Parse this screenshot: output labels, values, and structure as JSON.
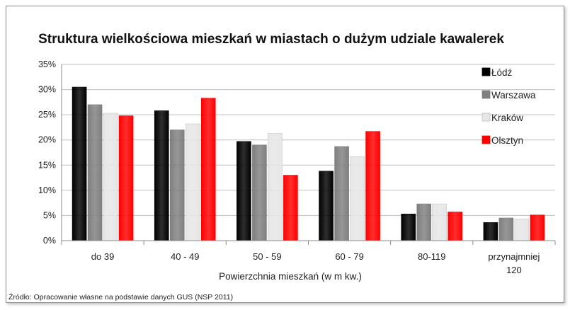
{
  "chart_data": {
    "type": "bar",
    "title": "Struktura wielkościowa mieszkań w miastach o dużym udziale kawalerek",
    "xlabel": "Powierzchnia mieszkań (w m kw.)",
    "ylabel": "",
    "ylim": [
      0,
      35
    ],
    "yticks": [
      "0%",
      "5%",
      "10%",
      "15%",
      "20%",
      "25%",
      "30%",
      "35%"
    ],
    "ytick_values": [
      0,
      5,
      10,
      15,
      20,
      25,
      30,
      35
    ],
    "grid": true,
    "legend_position": "right",
    "categories": [
      "do 39",
      "40 - 49",
      "50 - 59",
      "60 - 79",
      "80-119",
      "przynajmniej 120"
    ],
    "category_lines": [
      [
        "do 39"
      ],
      [
        "40 - 49"
      ],
      [
        "50 - 59"
      ],
      [
        "60 - 79"
      ],
      [
        "80-119"
      ],
      [
        "przynajmniej",
        "120"
      ]
    ],
    "series": [
      {
        "name": "Łódź",
        "color": "#000000",
        "values": [
          30.5,
          25.8,
          19.7,
          13.8,
          5.3,
          3.6
        ]
      },
      {
        "name": "Warszawa",
        "color": "#7f7f7f",
        "values": [
          27.0,
          22.0,
          19.0,
          18.7,
          7.3,
          4.5
        ]
      },
      {
        "name": "Kraków",
        "color": "#e6e6e6",
        "values": [
          25.3,
          23.2,
          21.3,
          16.7,
          7.3,
          4.3
        ]
      },
      {
        "name": "Olsztyn",
        "color": "#ff0000",
        "values": [
          24.8,
          28.3,
          13.0,
          21.7,
          5.7,
          5.1
        ]
      }
    ],
    "source": "Źródło: Opracowanie własne na podstawie danych GUS (NSP 2011)"
  }
}
